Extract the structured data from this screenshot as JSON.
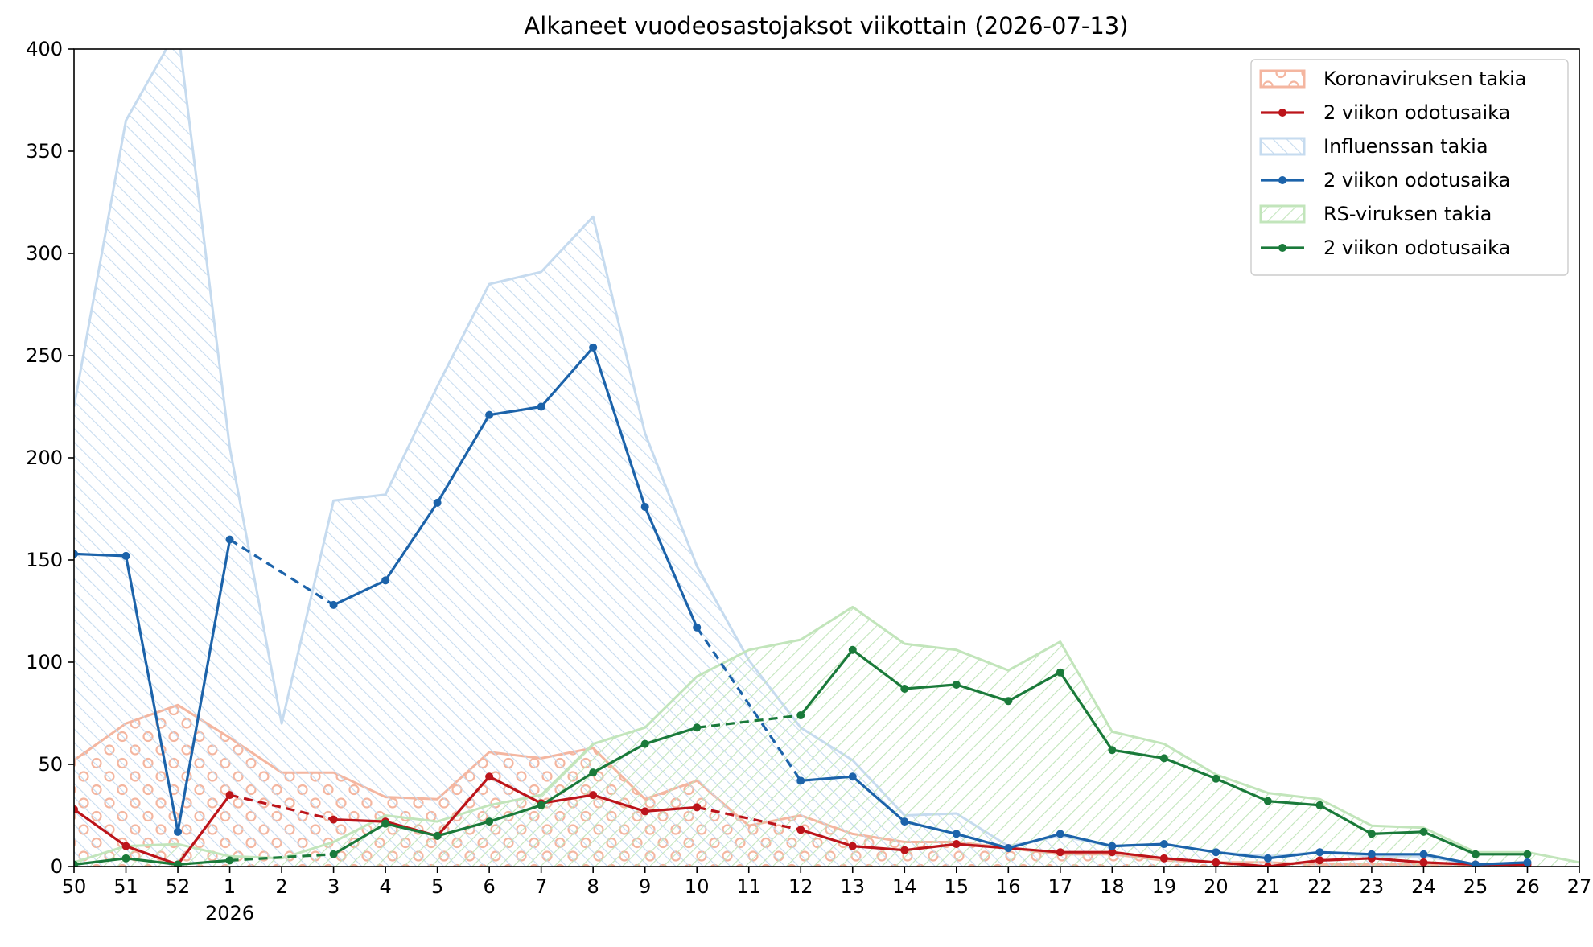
{
  "chart_data": {
    "type": "line",
    "title": "Alkaneet vuodeosastojaksot viikottain (2026-07-13)",
    "xlabel": "",
    "ylabel": "",
    "year_label": "2026",
    "categories": [
      "50",
      "51",
      "52",
      "1",
      "2",
      "3",
      "4",
      "5",
      "6",
      "7",
      "8",
      "9",
      "10",
      "11",
      "12",
      "13",
      "14",
      "15",
      "16",
      "17",
      "18",
      "19",
      "20",
      "21",
      "22",
      "23",
      "24",
      "25",
      "26",
      "27"
    ],
    "yticks": [
      "0",
      "50",
      "100",
      "150",
      "200",
      "250",
      "300",
      "350",
      "400"
    ],
    "ylim": [
      0,
      400
    ],
    "grid": false,
    "legend_position": "top-right",
    "series": [
      {
        "name": "Koronaviruksen takia",
        "kind": "area",
        "pattern": "circles",
        "color": "#f4b6a0",
        "values": [
          52,
          70,
          79,
          63,
          46,
          46,
          34,
          33,
          56,
          53,
          58,
          33,
          42,
          20,
          25,
          16,
          12,
          12,
          9,
          6,
          6,
          3,
          2,
          2,
          1,
          1,
          1,
          1,
          1,
          null
        ]
      },
      {
        "name": "2 viikon odotusaika",
        "kind": "line",
        "color": "#bc141a",
        "values": [
          28,
          10,
          1,
          35,
          null,
          23,
          22,
          15,
          44,
          31,
          35,
          27,
          29,
          null,
          18,
          10,
          8,
          11,
          9,
          7,
          7,
          4,
          2,
          0,
          3,
          4,
          2,
          1,
          1,
          null
        ]
      },
      {
        "name": "Influenssan takia",
        "kind": "area",
        "pattern": "diag-up",
        "color": "#c6dbef",
        "values": [
          225,
          365,
          410,
          205,
          70,
          179,
          182,
          235,
          285,
          291,
          318,
          212,
          147,
          101,
          68,
          52,
          25,
          26,
          10,
          15,
          10,
          11,
          7,
          5,
          7,
          5,
          5,
          1,
          2,
          null
        ]
      },
      {
        "name": "2 viikon odotusaika",
        "kind": "line",
        "color": "#1c63aa",
        "values": [
          153,
          152,
          17,
          160,
          null,
          128,
          140,
          178,
          221,
          225,
          254,
          176,
          117,
          null,
          42,
          44,
          22,
          16,
          9,
          16,
          10,
          11,
          7,
          4,
          7,
          6,
          6,
          1,
          2,
          null
        ]
      },
      {
        "name": "RS-viruksen takia",
        "kind": "area",
        "pattern": "diag-down",
        "color": "#c2e5bb",
        "values": [
          2,
          10,
          11,
          5,
          4,
          12,
          25,
          22,
          30,
          35,
          60,
          68,
          93,
          106,
          111,
          127,
          109,
          106,
          96,
          110,
          66,
          60,
          45,
          36,
          33,
          20,
          19,
          7,
          7,
          2
        ]
      },
      {
        "name": "2 viikon odotusaika",
        "kind": "line",
        "color": "#1a7a3a",
        "values": [
          1,
          4,
          1,
          3,
          null,
          6,
          21,
          15,
          22,
          30,
          46,
          60,
          68,
          null,
          74,
          106,
          87,
          89,
          81,
          95,
          57,
          53,
          43,
          32,
          30,
          16,
          17,
          6,
          6,
          null
        ]
      }
    ],
    "dashed_segments": [
      {
        "series": 1,
        "from": "1",
        "to": "3"
      },
      {
        "series": 1,
        "from": "10",
        "to": "12"
      },
      {
        "series": 3,
        "from": "1",
        "to": "3"
      },
      {
        "series": 3,
        "from": "10",
        "to": "12"
      },
      {
        "series": 5,
        "from": "1",
        "to": "3"
      },
      {
        "series": 5,
        "from": "10",
        "to": "12"
      }
    ]
  }
}
